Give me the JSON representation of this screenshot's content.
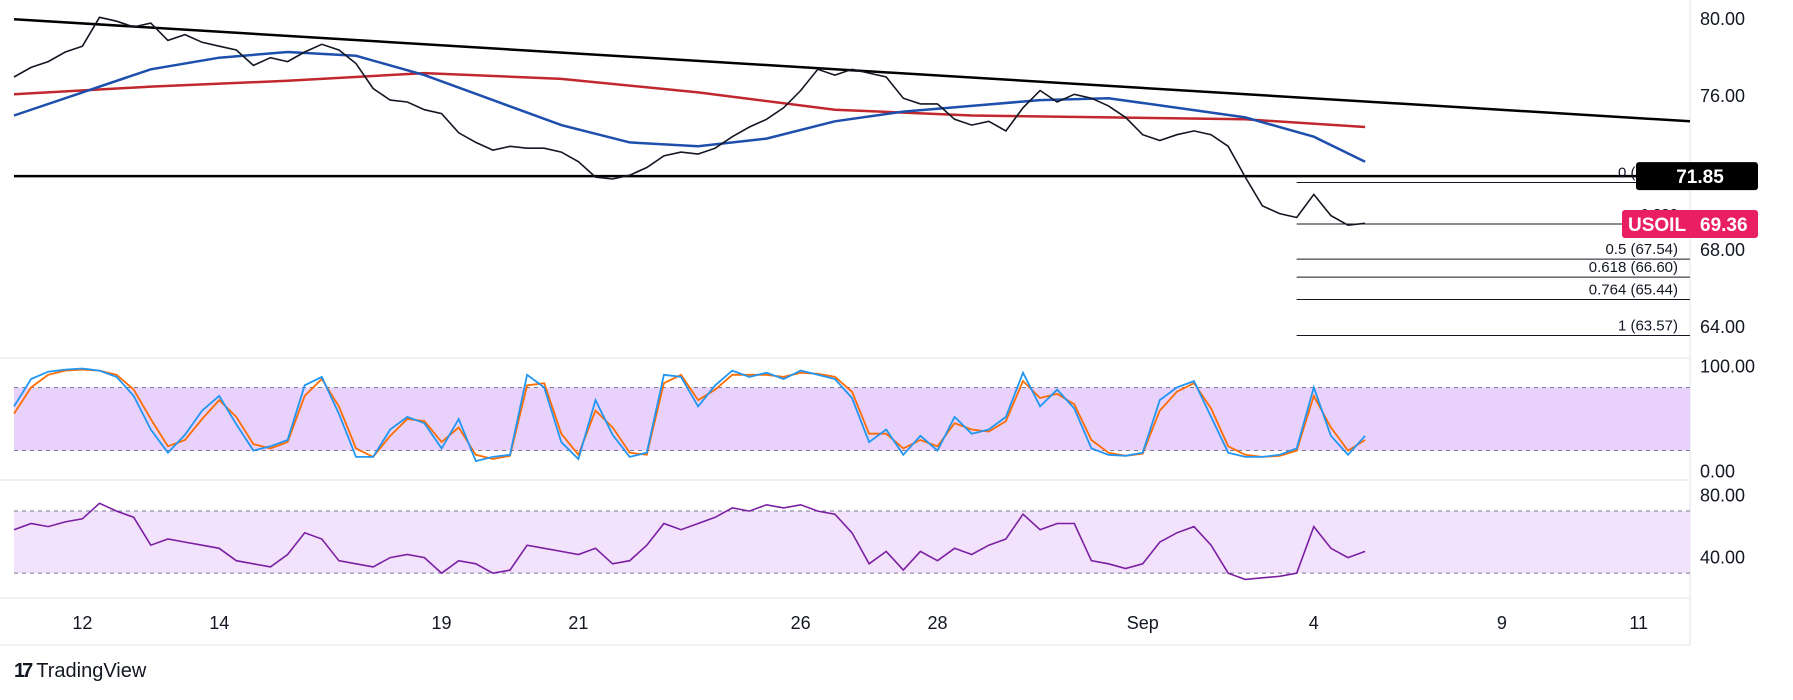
{
  "branding": {
    "logo_mark": "17",
    "name": "TradingView"
  },
  "chart_data": {
    "type": "line",
    "symbol": "USOIL",
    "last_price": "69.36",
    "price_axis": {
      "ylim": [
        62.4,
        81.0
      ],
      "ticks": [
        "80.00",
        "76.00",
        "68.00",
        "64.00"
      ],
      "tick_values": [
        80,
        76,
        68,
        64
      ]
    },
    "x_axis": {
      "ticks": [
        "12",
        "14",
        "19",
        "21",
        "26",
        "28",
        "Sep",
        "4",
        "9",
        "11"
      ],
      "tick_index": [
        8,
        24,
        50,
        66,
        92,
        108,
        132,
        152,
        174,
        190
      ],
      "last_bar_index": 158,
      "xlim": [
        0,
        196
      ]
    },
    "horizontal_level": {
      "value": 71.85,
      "label": "71.85"
    },
    "trendline": {
      "from": [
        0,
        80.0
      ],
      "to": [
        196,
        74.7
      ]
    },
    "price_series": [
      [
        0,
        77.0
      ],
      [
        2,
        77.5
      ],
      [
        4,
        77.8
      ],
      [
        6,
        78.3
      ],
      [
        8,
        78.6
      ],
      [
        10,
        80.1
      ],
      [
        12,
        79.9
      ],
      [
        14,
        79.6
      ],
      [
        16,
        79.8
      ],
      [
        18,
        78.9
      ],
      [
        20,
        79.2
      ],
      [
        22,
        78.8
      ],
      [
        24,
        78.6
      ],
      [
        26,
        78.4
      ],
      [
        28,
        77.6
      ],
      [
        30,
        78.0
      ],
      [
        32,
        77.8
      ],
      [
        34,
        78.3
      ],
      [
        36,
        78.7
      ],
      [
        38,
        78.4
      ],
      [
        40,
        77.7
      ],
      [
        42,
        76.4
      ],
      [
        44,
        75.8
      ],
      [
        46,
        75.7
      ],
      [
        48,
        75.3
      ],
      [
        50,
        75.1
      ],
      [
        52,
        74.1
      ],
      [
        54,
        73.6
      ],
      [
        56,
        73.2
      ],
      [
        58,
        73.4
      ],
      [
        60,
        73.3
      ],
      [
        62,
        73.3
      ],
      [
        64,
        73.1
      ],
      [
        66,
        72.6
      ],
      [
        68,
        71.8
      ],
      [
        70,
        71.7
      ],
      [
        72,
        71.9
      ],
      [
        74,
        72.3
      ],
      [
        76,
        72.9
      ],
      [
        78,
        73.1
      ],
      [
        80,
        73.0
      ],
      [
        82,
        73.3
      ],
      [
        84,
        73.9
      ],
      [
        86,
        74.4
      ],
      [
        88,
        74.8
      ],
      [
        90,
        75.4
      ],
      [
        92,
        76.3
      ],
      [
        94,
        77.4
      ],
      [
        96,
        77.1
      ],
      [
        98,
        77.4
      ],
      [
        100,
        77.2
      ],
      [
        102,
        77.0
      ],
      [
        104,
        75.9
      ],
      [
        106,
        75.6
      ],
      [
        108,
        75.6
      ],
      [
        110,
        74.8
      ],
      [
        112,
        74.5
      ],
      [
        114,
        74.7
      ],
      [
        116,
        74.2
      ],
      [
        118,
        75.4
      ],
      [
        120,
        76.3
      ],
      [
        122,
        75.7
      ],
      [
        124,
        76.1
      ],
      [
        126,
        75.9
      ],
      [
        128,
        75.5
      ],
      [
        130,
        74.9
      ],
      [
        132,
        74.0
      ],
      [
        134,
        73.7
      ],
      [
        136,
        74.0
      ],
      [
        138,
        74.2
      ],
      [
        140,
        74.0
      ],
      [
        142,
        73.4
      ],
      [
        144,
        71.8
      ],
      [
        146,
        70.3
      ],
      [
        148,
        69.9
      ],
      [
        150,
        69.7
      ],
      [
        152,
        70.9
      ],
      [
        154,
        69.8
      ],
      [
        156,
        69.3
      ],
      [
        158,
        69.4
      ]
    ],
    "series": [
      {
        "name": "",
        "color": "#1e4fad",
        "values": [
          [
            0,
            75.0
          ],
          [
            8,
            76.2
          ],
          [
            16,
            77.4
          ],
          [
            24,
            78.0
          ],
          [
            32,
            78.3
          ],
          [
            40,
            78.1
          ],
          [
            48,
            77.1
          ],
          [
            56,
            75.8
          ],
          [
            64,
            74.5
          ],
          [
            72,
            73.6
          ],
          [
            80,
            73.4
          ],
          [
            88,
            73.8
          ],
          [
            96,
            74.7
          ],
          [
            104,
            75.2
          ],
          [
            112,
            75.5
          ],
          [
            120,
            75.8
          ],
          [
            128,
            75.9
          ],
          [
            136,
            75.4
          ],
          [
            144,
            74.9
          ],
          [
            152,
            73.9
          ],
          [
            158,
            72.6
          ]
        ]
      },
      {
        "name": "",
        "color": "#c0282e",
        "values": [
          [
            0,
            76.1
          ],
          [
            16,
            76.5
          ],
          [
            32,
            76.8
          ],
          [
            48,
            77.2
          ],
          [
            64,
            76.9
          ],
          [
            80,
            76.2
          ],
          [
            96,
            75.3
          ],
          [
            112,
            75.0
          ],
          [
            128,
            74.9
          ],
          [
            144,
            74.8
          ],
          [
            158,
            74.4
          ]
        ]
      }
    ],
    "fib_levels": [
      {
        "label": "0 (71.52)",
        "value": 71.52
      },
      {
        "label": "0.382",
        "value": 69.36
      },
      {
        "label": "0.5 (67.54)",
        "value": 67.54
      },
      {
        "label": "0.618 (66.60)",
        "value": 66.6
      },
      {
        "label": "0.764 (65.44)",
        "value": 65.44
      },
      {
        "label": "1 (63.57)",
        "value": 63.57
      }
    ],
    "fib_x_start": 150,
    "stoch_panel": {
      "axis_ticks": [
        "100.00",
        "0.00"
      ],
      "tick_values": [
        100,
        0
      ],
      "ylim": [
        -8,
        108
      ],
      "band": [
        20,
        80
      ],
      "k_color": "#2196f3",
      "d_color": "#ff6d00",
      "band_color": "#e8d2fb",
      "k_values": [
        [
          0,
          62
        ],
        [
          2,
          88
        ],
        [
          4,
          95
        ],
        [
          6,
          97
        ],
        [
          8,
          98
        ],
        [
          10,
          96
        ],
        [
          12,
          90
        ],
        [
          14,
          72
        ],
        [
          16,
          40
        ],
        [
          18,
          18
        ],
        [
          20,
          35
        ],
        [
          22,
          58
        ],
        [
          24,
          72
        ],
        [
          26,
          45
        ],
        [
          28,
          20
        ],
        [
          30,
          24
        ],
        [
          32,
          30
        ],
        [
          34,
          82
        ],
        [
          36,
          90
        ],
        [
          38,
          55
        ],
        [
          40,
          14
        ],
        [
          42,
          14
        ],
        [
          44,
          40
        ],
        [
          46,
          52
        ],
        [
          48,
          46
        ],
        [
          50,
          22
        ],
        [
          52,
          50
        ],
        [
          54,
          10
        ],
        [
          56,
          14
        ],
        [
          58,
          16
        ],
        [
          60,
          92
        ],
        [
          62,
          80
        ],
        [
          64,
          28
        ],
        [
          66,
          12
        ],
        [
          68,
          68
        ],
        [
          70,
          35
        ],
        [
          72,
          14
        ],
        [
          74,
          18
        ],
        [
          76,
          92
        ],
        [
          78,
          90
        ],
        [
          80,
          62
        ],
        [
          82,
          82
        ],
        [
          84,
          96
        ],
        [
          86,
          90
        ],
        [
          88,
          94
        ],
        [
          90,
          88
        ],
        [
          92,
          96
        ],
        [
          94,
          92
        ],
        [
          96,
          88
        ],
        [
          98,
          70
        ],
        [
          100,
          28
        ],
        [
          102,
          40
        ],
        [
          104,
          16
        ],
        [
          106,
          34
        ],
        [
          108,
          20
        ],
        [
          110,
          52
        ],
        [
          112,
          36
        ],
        [
          114,
          40
        ],
        [
          116,
          52
        ],
        [
          118,
          94
        ],
        [
          120,
          62
        ],
        [
          122,
          78
        ],
        [
          124,
          60
        ],
        [
          126,
          22
        ],
        [
          128,
          16
        ],
        [
          130,
          15
        ],
        [
          132,
          18
        ],
        [
          134,
          68
        ],
        [
          136,
          80
        ],
        [
          138,
          86
        ],
        [
          140,
          52
        ],
        [
          142,
          18
        ],
        [
          144,
          14
        ],
        [
          146,
          14
        ],
        [
          148,
          16
        ],
        [
          150,
          22
        ],
        [
          152,
          80
        ],
        [
          154,
          34
        ],
        [
          156,
          16
        ],
        [
          158,
          34
        ]
      ],
      "d_values": [
        [
          0,
          55
        ],
        [
          2,
          80
        ],
        [
          4,
          92
        ],
        [
          6,
          96
        ],
        [
          8,
          97
        ],
        [
          10,
          96
        ],
        [
          12,
          92
        ],
        [
          14,
          78
        ],
        [
          16,
          50
        ],
        [
          18,
          24
        ],
        [
          20,
          30
        ],
        [
          22,
          50
        ],
        [
          24,
          68
        ],
        [
          26,
          52
        ],
        [
          28,
          26
        ],
        [
          30,
          22
        ],
        [
          32,
          28
        ],
        [
          34,
          72
        ],
        [
          36,
          88
        ],
        [
          38,
          62
        ],
        [
          40,
          22
        ],
        [
          42,
          14
        ],
        [
          44,
          34
        ],
        [
          46,
          50
        ],
        [
          48,
          48
        ],
        [
          50,
          28
        ],
        [
          52,
          42
        ],
        [
          54,
          16
        ],
        [
          56,
          12
        ],
        [
          58,
          15
        ],
        [
          60,
          82
        ],
        [
          62,
          84
        ],
        [
          64,
          36
        ],
        [
          66,
          16
        ],
        [
          68,
          58
        ],
        [
          70,
          42
        ],
        [
          72,
          18
        ],
        [
          74,
          16
        ],
        [
          76,
          84
        ],
        [
          78,
          92
        ],
        [
          80,
          68
        ],
        [
          82,
          78
        ],
        [
          84,
          92
        ],
        [
          86,
          92
        ],
        [
          88,
          92
        ],
        [
          90,
          90
        ],
        [
          92,
          94
        ],
        [
          94,
          93
        ],
        [
          96,
          90
        ],
        [
          98,
          76
        ],
        [
          100,
          36
        ],
        [
          102,
          36
        ],
        [
          104,
          22
        ],
        [
          106,
          30
        ],
        [
          108,
          24
        ],
        [
          110,
          46
        ],
        [
          112,
          40
        ],
        [
          114,
          38
        ],
        [
          116,
          48
        ],
        [
          118,
          86
        ],
        [
          120,
          70
        ],
        [
          122,
          74
        ],
        [
          124,
          64
        ],
        [
          126,
          30
        ],
        [
          128,
          18
        ],
        [
          130,
          15
        ],
        [
          132,
          17
        ],
        [
          134,
          58
        ],
        [
          136,
          76
        ],
        [
          138,
          84
        ],
        [
          140,
          60
        ],
        [
          142,
          24
        ],
        [
          144,
          16
        ],
        [
          146,
          14
        ],
        [
          148,
          15
        ],
        [
          150,
          20
        ],
        [
          152,
          72
        ],
        [
          154,
          42
        ],
        [
          156,
          20
        ],
        [
          158,
          30
        ]
      ]
    },
    "rsi_panel": {
      "axis_ticks": [
        "80.00",
        "40.00"
      ],
      "tick_values": [
        80,
        40
      ],
      "ylim": [
        14,
        90
      ],
      "band": [
        30,
        70
      ],
      "line_color": "#7b1fa2",
      "band_color": "#f2e2fb",
      "values": [
        [
          0,
          58
        ],
        [
          2,
          62
        ],
        [
          4,
          60
        ],
        [
          6,
          63
        ],
        [
          8,
          65
        ],
        [
          10,
          75
        ],
        [
          12,
          70
        ],
        [
          14,
          66
        ],
        [
          16,
          48
        ],
        [
          18,
          52
        ],
        [
          20,
          50
        ],
        [
          22,
          48
        ],
        [
          24,
          46
        ],
        [
          26,
          38
        ],
        [
          28,
          36
        ],
        [
          30,
          34
        ],
        [
          32,
          42
        ],
        [
          34,
          56
        ],
        [
          36,
          52
        ],
        [
          38,
          38
        ],
        [
          40,
          36
        ],
        [
          42,
          34
        ],
        [
          44,
          40
        ],
        [
          46,
          42
        ],
        [
          48,
          40
        ],
        [
          50,
          30
        ],
        [
          52,
          38
        ],
        [
          54,
          36
        ],
        [
          56,
          30
        ],
        [
          58,
          32
        ],
        [
          60,
          48
        ],
        [
          62,
          46
        ],
        [
          64,
          44
        ],
        [
          66,
          42
        ],
        [
          68,
          46
        ],
        [
          70,
          36
        ],
        [
          72,
          38
        ],
        [
          74,
          48
        ],
        [
          76,
          62
        ],
        [
          78,
          58
        ],
        [
          80,
          62
        ],
        [
          82,
          66
        ],
        [
          84,
          72
        ],
        [
          86,
          70
        ],
        [
          88,
          74
        ],
        [
          90,
          72
        ],
        [
          92,
          74
        ],
        [
          94,
          70
        ],
        [
          96,
          68
        ],
        [
          98,
          56
        ],
        [
          100,
          36
        ],
        [
          102,
          44
        ],
        [
          104,
          32
        ],
        [
          106,
          44
        ],
        [
          108,
          38
        ],
        [
          110,
          46
        ],
        [
          112,
          42
        ],
        [
          114,
          48
        ],
        [
          116,
          52
        ],
        [
          118,
          68
        ],
        [
          120,
          58
        ],
        [
          122,
          62
        ],
        [
          124,
          62
        ],
        [
          126,
          38
        ],
        [
          128,
          36
        ],
        [
          130,
          33
        ],
        [
          132,
          36
        ],
        [
          134,
          50
        ],
        [
          136,
          56
        ],
        [
          138,
          60
        ],
        [
          140,
          48
        ],
        [
          142,
          30
        ],
        [
          144,
          26
        ],
        [
          146,
          27
        ],
        [
          148,
          28
        ],
        [
          150,
          30
        ],
        [
          152,
          60
        ],
        [
          154,
          46
        ],
        [
          156,
          40
        ],
        [
          158,
          44
        ]
      ]
    }
  }
}
